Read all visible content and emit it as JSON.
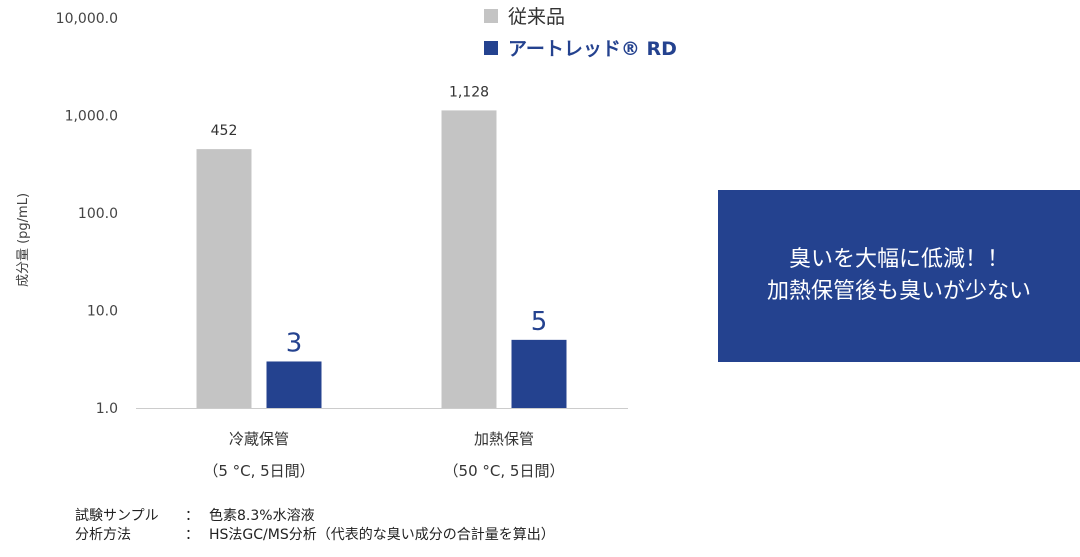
{
  "chart_data": {
    "type": "bar",
    "scale": "log",
    "ylabel": "成分量 (pg/mL)",
    "ylim": [
      1,
      10000
    ],
    "yticks": [
      "10,000.0",
      "1,000.0",
      "100.0",
      "10.0",
      "1.0"
    ],
    "categories": [
      {
        "label": "冷蔵保管",
        "sublabel": "（5 °C, 5日間）"
      },
      {
        "label": "加熱保管",
        "sublabel": "（50 °C, 5日間）"
      }
    ],
    "series": [
      {
        "name": "従来品",
        "color": "#c4c4c4",
        "values": [
          452,
          1128
        ],
        "value_labels": [
          "452",
          "1,128"
        ]
      },
      {
        "name": "アートレッド® RD",
        "color": "#24428f",
        "values": [
          3,
          5
        ],
        "value_labels": [
          "3",
          "5"
        ]
      }
    ],
    "legend_position": "top"
  },
  "legend": {
    "item1": "従来品",
    "item2": "アートレッド® RD"
  },
  "callout": {
    "line1": "臭いを大幅に低減！！",
    "line2": "加熱保管後も臭いが少ない"
  },
  "footnote": {
    "row1_label": "試験サンプル",
    "row1_colon": "：",
    "row1_value": "色素8.3%水溶液",
    "row2_label": "分析方法",
    "row2_colon": "：",
    "row2_value": "HS法GC/MS分析（代表的な臭い成分の合計量を算出）"
  },
  "colors": {
    "accent": "#24428f",
    "grey_bar": "#c4c4c4",
    "axis": "#cccccc"
  }
}
